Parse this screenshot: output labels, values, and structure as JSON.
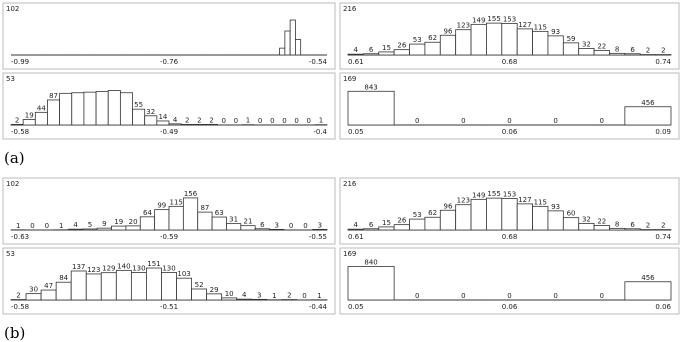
{
  "captions": [
    "(a)",
    "(b)"
  ],
  "chart_data": [
    {
      "type": "bar",
      "label": "102",
      "x_labels": [
        "-0.99",
        "-0.76",
        "-0.54"
      ],
      "show_values": false,
      "ylim": [
        0,
        105
      ],
      "categories": [
        null,
        null,
        null,
        null,
        null,
        null,
        null,
        null,
        null,
        null,
        null,
        null,
        null,
        null,
        null,
        null,
        null,
        null,
        null,
        null,
        null,
        null,
        null,
        null,
        null,
        null,
        null,
        null,
        null,
        null,
        null,
        null,
        null,
        null,
        null,
        null,
        null,
        null,
        null,
        null,
        null,
        null,
        null,
        null,
        null,
        null,
        null,
        null,
        null,
        null,
        null,
        null,
        null,
        null,
        null,
        null,
        null,
        null,
        null,
        null
      ],
      "values": [
        0,
        0,
        0,
        0,
        0,
        0,
        0,
        0,
        0,
        0,
        0,
        0,
        0,
        0,
        0,
        0,
        0,
        0,
        0,
        0,
        0,
        0,
        0,
        0,
        0,
        0,
        0,
        0,
        0,
        0,
        0,
        0,
        0,
        0,
        0,
        0,
        0,
        0,
        0,
        0,
        0,
        0,
        0,
        0,
        0,
        0,
        0,
        0,
        0,
        0,
        0,
        20,
        70,
        102,
        45,
        0,
        0,
        0,
        0,
        0
      ]
    },
    {
      "type": "bar",
      "label": "216",
      "x_labels": [
        "0.61",
        "0.68",
        "0.74"
      ],
      "show_values": true,
      "ylim": [
        0,
        175
      ],
      "categories": [
        null,
        null,
        null,
        null,
        null,
        null,
        null,
        null,
        null,
        null,
        null,
        null,
        null,
        null,
        null,
        null,
        null,
        null,
        null,
        null,
        null
      ],
      "values": [
        4,
        6,
        15,
        26,
        53,
        62,
        96,
        123,
        149,
        155,
        153,
        127,
        115,
        93,
        59,
        32,
        22,
        8,
        6,
        2,
        2
      ]
    },
    {
      "type": "bar",
      "label": "53",
      "x_labels": [
        "-0.58",
        "-0.49",
        "-0.4"
      ],
      "show_values": false,
      "ylim": [
        0,
        125
      ],
      "categories": [
        null,
        null,
        null,
        null,
        null,
        null,
        null,
        null,
        null,
        null,
        null,
        null,
        null,
        null,
        null,
        null,
        null,
        null,
        null,
        null,
        null,
        null,
        null,
        null,
        null,
        null
      ],
      "values": [
        2,
        19,
        44,
        87,
        110,
        112,
        114,
        116,
        120,
        112,
        55,
        32,
        14,
        4,
        2,
        2,
        2,
        0,
        0,
        1,
        0,
        0,
        0,
        0,
        0,
        1
      ],
      "value_labels": [
        "2",
        "19",
        "44",
        "87",
        null,
        null,
        null,
        null,
        null,
        null,
        "55",
        "32",
        "14",
        "4",
        "2",
        "2",
        "2",
        "0",
        "0",
        "1",
        "0",
        "0",
        "0",
        "0",
        "0",
        "1"
      ]
    },
    {
      "type": "bar",
      "label": "169",
      "x_labels": [
        "0.05",
        "0.06",
        "0.09"
      ],
      "show_values": true,
      "ylim": [
        0,
        900
      ],
      "categories": [
        null,
        null,
        null,
        null,
        null,
        null,
        null
      ],
      "values": [
        843,
        0,
        0,
        0,
        0,
        0,
        456
      ]
    },
    {
      "type": "bar",
      "label": "102",
      "x_labels": [
        "-0.63",
        "-0.59",
        "-0.55"
      ],
      "show_values": true,
      "ylim": [
        0,
        175
      ],
      "categories": [
        null,
        null,
        null,
        null,
        null,
        null,
        null,
        null,
        null,
        null,
        null,
        null,
        null,
        null,
        null,
        null,
        null,
        null,
        null,
        null,
        null,
        null
      ],
      "values": [
        1,
        0,
        0,
        1,
        4,
        5,
        9,
        19,
        20,
        64,
        99,
        115,
        156,
        87,
        63,
        31,
        21,
        6,
        3,
        0,
        0,
        3
      ]
    },
    {
      "type": "bar",
      "label": "216",
      "x_labels": [
        "0.61",
        "0.68",
        "0.74"
      ],
      "show_values": true,
      "ylim": [
        0,
        175
      ],
      "categories": [
        null,
        null,
        null,
        null,
        null,
        null,
        null,
        null,
        null,
        null,
        null,
        null,
        null,
        null,
        null,
        null,
        null,
        null,
        null,
        null,
        null
      ],
      "values": [
        4,
        6,
        15,
        26,
        53,
        62,
        96,
        123,
        149,
        155,
        153,
        127,
        115,
        93,
        60,
        32,
        22,
        8,
        6,
        2,
        2
      ]
    },
    {
      "type": "bar",
      "label": "53",
      "x_labels": [
        "-0.58",
        "-0.51",
        "-0.44"
      ],
      "show_values": true,
      "ylim": [
        0,
        170
      ],
      "categories": [
        null,
        null,
        null,
        null,
        null,
        null,
        null,
        null,
        null,
        null,
        null,
        null,
        null,
        null,
        null,
        null,
        null,
        null,
        null,
        null,
        null
      ],
      "values": [
        2,
        30,
        47,
        84,
        137,
        123,
        129,
        140,
        130,
        151,
        130,
        103,
        52,
        29,
        10,
        4,
        3,
        1,
        2,
        0,
        1
      ]
    },
    {
      "type": "bar",
      "label": "169",
      "x_labels": [
        "0.05",
        "0.06",
        "0.06"
      ],
      "show_values": true,
      "ylim": [
        0,
        900
      ],
      "categories": [
        null,
        null,
        null,
        null,
        null,
        null,
        null
      ],
      "values": [
        840,
        0,
        0,
        0,
        0,
        0,
        456
      ]
    }
  ]
}
